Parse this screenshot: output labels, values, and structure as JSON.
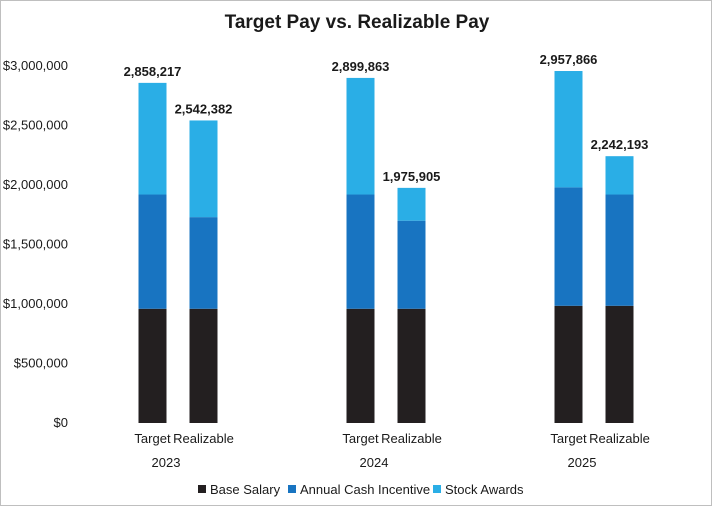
{
  "chart_data": {
    "type": "bar",
    "stacked": true,
    "title": "Target Pay vs. Realizable Pay",
    "xlabel": "",
    "ylabel": "",
    "ylim": [
      0,
      3000000
    ],
    "yticks": [
      0,
      500000,
      1000000,
      1500000,
      2000000,
      2500000,
      3000000
    ],
    "ytick_labels": [
      "$0",
      "$500,000",
      "$1,000,000",
      "$1,500,000",
      "$2,000,000",
      "$2,500,000",
      "$3,000,000"
    ],
    "grid": false,
    "legend_position": "bottom",
    "groups": [
      "2023",
      "2024",
      "2025"
    ],
    "categories": [
      "Target",
      "Realizable"
    ],
    "series": [
      {
        "name": "Base Salary",
        "color": "#231f20",
        "values": [
          [
            960000,
            960000
          ],
          [
            960000,
            960000
          ],
          [
            985000,
            985000
          ]
        ]
      },
      {
        "name": "Annual Cash Incentive",
        "color": "#1874c1",
        "values": [
          [
            960000,
            770000
          ],
          [
            960000,
            740000
          ],
          [
            995000,
            935000
          ]
        ]
      },
      {
        "name": "Stock Awards",
        "color": "#2aaee6",
        "values": [
          [
            938217,
            812382
          ],
          [
            979863,
            275905
          ],
          [
            977866,
            322193
          ]
        ]
      }
    ],
    "totals": [
      [
        "2,858,217",
        "2,542,382"
      ],
      [
        "2,899,863",
        "1,975,905"
      ],
      [
        "2,957,866",
        "2,242,193"
      ]
    ]
  }
}
